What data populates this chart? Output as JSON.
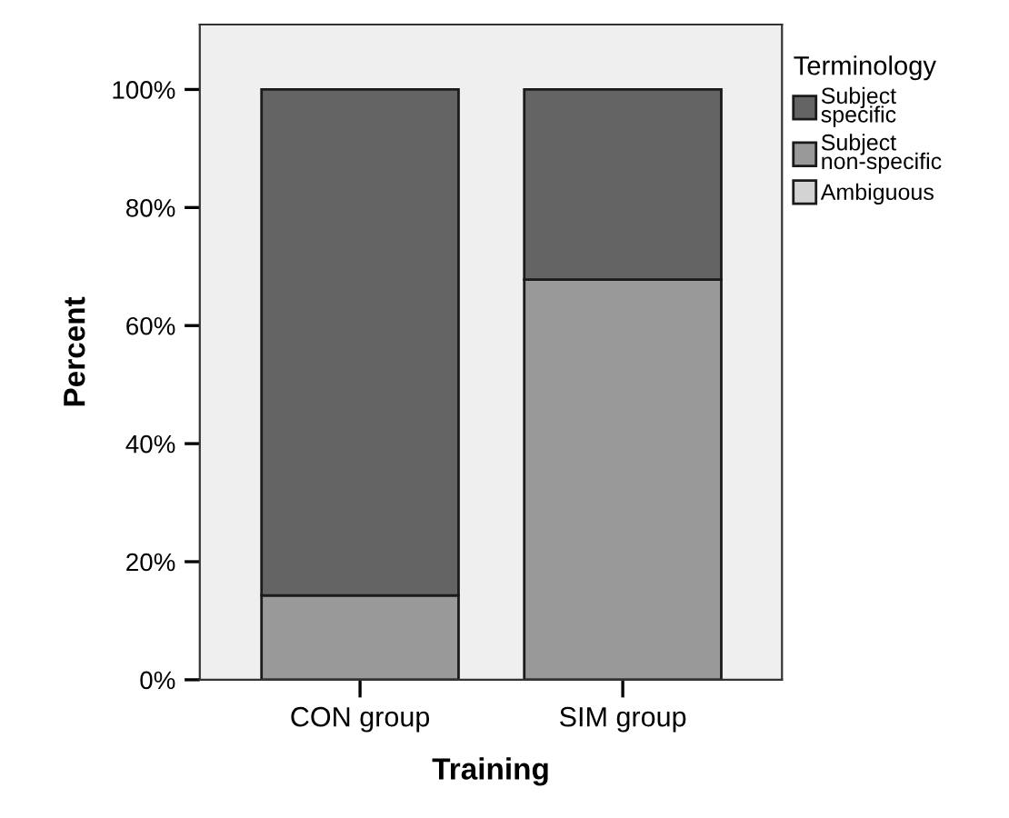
{
  "chart_data": {
    "type": "bar",
    "stacked": true,
    "xlabel": "Training",
    "ylabel": "Percent",
    "legend_title": "Terminology",
    "legend": "top right",
    "grid": false,
    "categories": [
      "CON group",
      "SIM group"
    ],
    "series": [
      {
        "name": "Ambiguous",
        "color": "#d3d3d3",
        "values": [
          0,
          0
        ]
      },
      {
        "name": "Subject non-specific",
        "color": "#999999",
        "values": [
          14.3,
          67.8
        ]
      },
      {
        "name": "Subject specific",
        "color": "#646464",
        "values": [
          85.7,
          32.2
        ]
      }
    ],
    "ylim": [
      0,
      111
    ],
    "yticks": [
      {
        "value": 0,
        "label": "0%"
      },
      {
        "value": 20,
        "label": "20%"
      },
      {
        "value": 40,
        "label": "40%"
      },
      {
        "value": 60,
        "label": "60%"
      },
      {
        "value": 80,
        "label": "80%"
      },
      {
        "value": 100,
        "label": "100%"
      }
    ]
  }
}
